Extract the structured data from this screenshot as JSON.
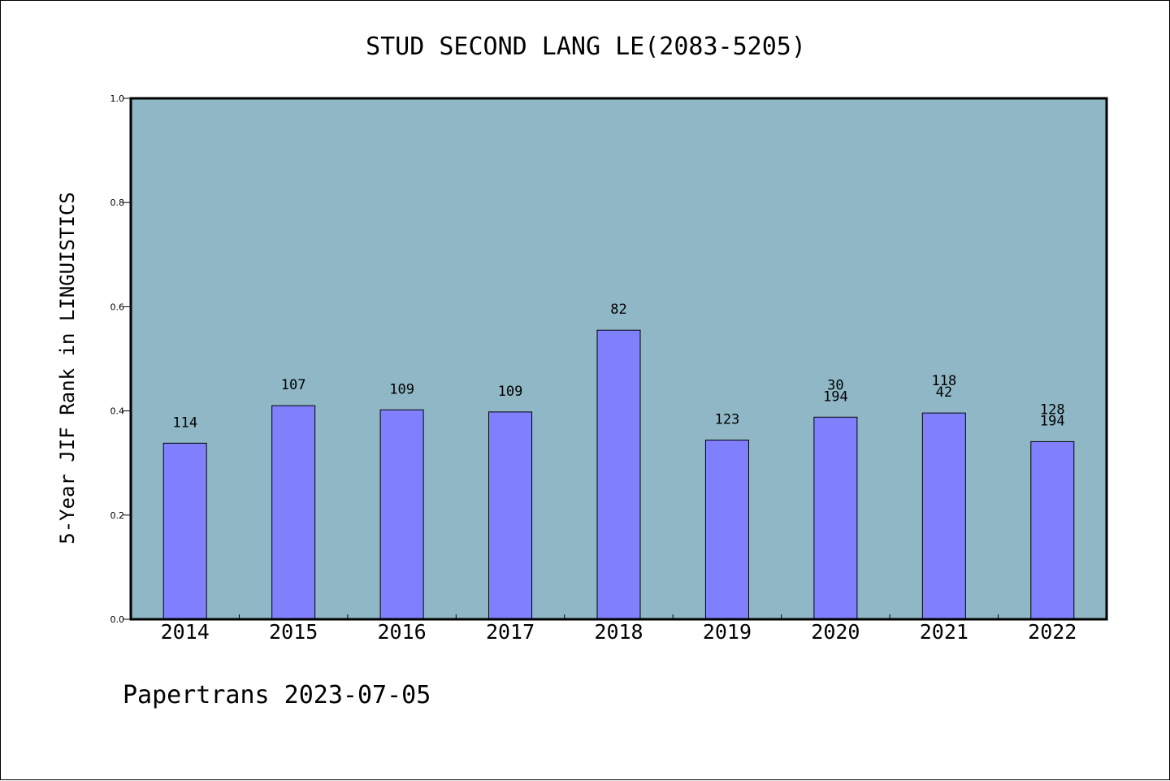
{
  "chart_data": {
    "type": "bar",
    "title": "STUD SECOND LANG LE(2083-5205)",
    "ylabel": "5-Year JIF Rank in LINGUISTICS",
    "xlabel": "",
    "footer": "Papertrans 2023-07-05",
    "ylim": [
      0,
      1.0
    ],
    "yticks": [
      "0.0",
      "0.2",
      "0.4",
      "0.6",
      "0.8",
      "1.0"
    ],
    "categories": [
      "2014",
      "2015",
      "2016",
      "2017",
      "2018",
      "2019",
      "2020",
      "2021",
      "2022"
    ],
    "values": [
      0.338,
      0.41,
      0.402,
      0.398,
      0.555,
      0.344,
      0.388,
      0.396,
      0.341
    ],
    "labels": [
      [
        "114"
      ],
      [
        "107"
      ],
      [
        "109"
      ],
      [
        "109"
      ],
      [
        "82"
      ],
      [
        "123"
      ],
      [
        "30",
        "194"
      ],
      [
        "118",
        "42"
      ],
      [
        "128",
        "194"
      ]
    ],
    "grid": false,
    "colors": {
      "plot_bg": "#8fb7c6",
      "bar_fill": "#8080ff",
      "bar_stroke": "#000000"
    }
  }
}
